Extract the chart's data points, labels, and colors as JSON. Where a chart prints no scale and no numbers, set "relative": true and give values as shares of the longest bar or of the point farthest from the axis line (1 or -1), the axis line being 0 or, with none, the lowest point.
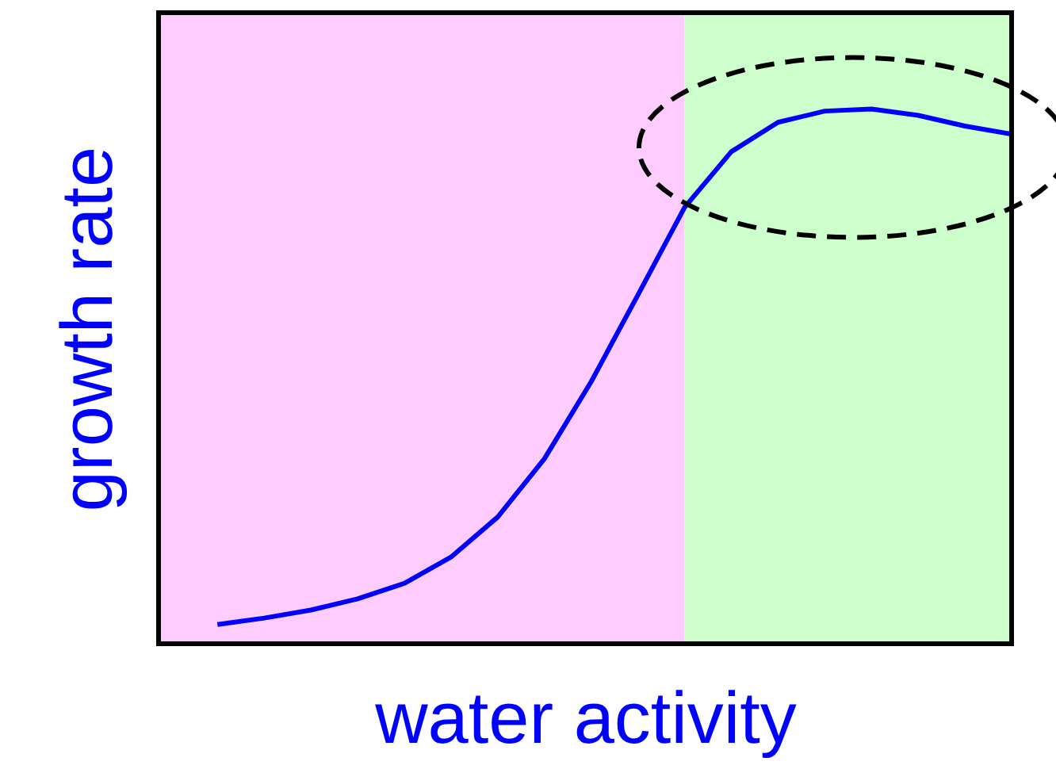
{
  "chart_data": {
    "type": "line",
    "relative": true,
    "xlabel": "water activity",
    "ylabel": "growth rate",
    "categories": [
      null,
      null,
      null,
      null,
      null,
      null,
      null,
      null,
      null,
      null,
      null,
      null,
      null,
      null,
      null,
      null,
      null,
      null
    ],
    "tick_labels": false,
    "marker": "none",
    "line_style": "solid",
    "series": [
      {
        "color": "#0000ff",
        "values": [
          0.036,
          0.048,
          0.063,
          0.084,
          0.113,
          0.162,
          0.237,
          0.346,
          0.49,
          0.652,
          0.816,
          0.92,
          0.975,
          0.996,
          1.0,
          0.988,
          0.968,
          0.953
        ]
      }
    ]
  }
}
